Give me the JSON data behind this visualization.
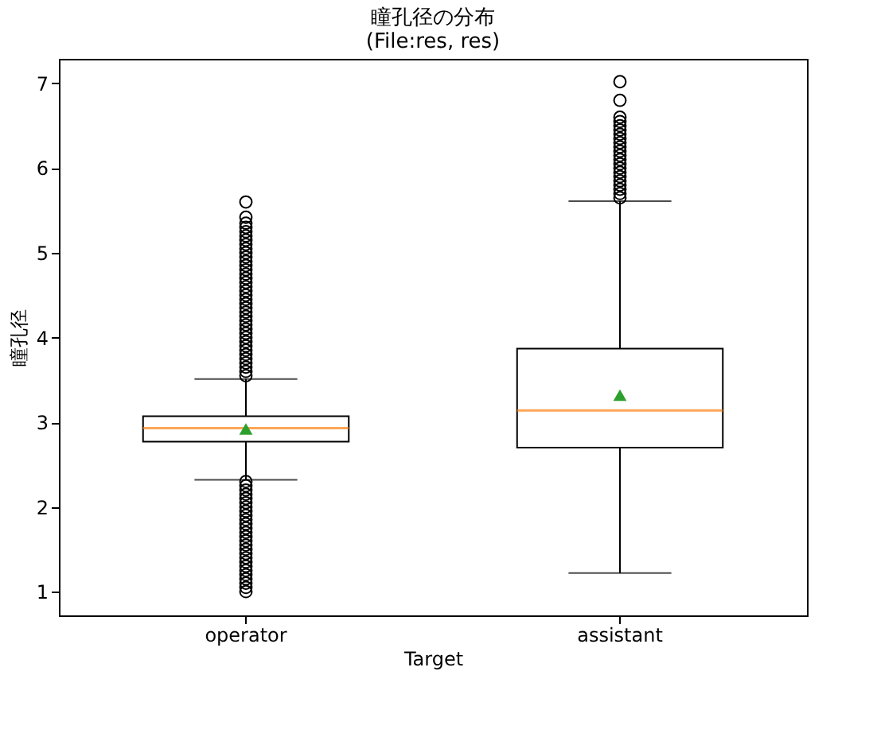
{
  "chart_data": {
    "type": "box",
    "title": "瞳孔径の分布\n(File:res, res)",
    "xlabel": "Target",
    "ylabel": "瞳孔径",
    "categories": [
      "operator",
      "assistant"
    ],
    "boxes": [
      {
        "low": 2.32,
        "q1": 2.77,
        "median": 2.93,
        "q3": 3.07,
        "high": 3.51,
        "mean": 2.92,
        "outliers": [
          1.0,
          1.05,
          1.1,
          1.15,
          1.2,
          1.25,
          1.3,
          1.35,
          1.4,
          1.45,
          1.5,
          1.55,
          1.6,
          1.65,
          1.7,
          1.75,
          1.8,
          1.85,
          1.9,
          1.95,
          2.0,
          2.05,
          2.1,
          2.15,
          2.2,
          2.25,
          2.3,
          3.55,
          3.6,
          3.65,
          3.7,
          3.75,
          3.8,
          3.85,
          3.9,
          3.95,
          4.0,
          4.05,
          4.1,
          4.15,
          4.2,
          4.25,
          4.3,
          4.35,
          4.4,
          4.45,
          4.5,
          4.55,
          4.6,
          4.65,
          4.7,
          4.75,
          4.8,
          4.85,
          4.9,
          4.95,
          5.0,
          5.05,
          5.1,
          5.15,
          5.2,
          5.25,
          5.3,
          5.35,
          5.42,
          5.6
        ]
      },
      {
        "low": 1.22,
        "q1": 2.7,
        "median": 3.14,
        "q3": 3.87,
        "high": 5.61,
        "mean": 3.32,
        "outliers": [
          5.65,
          5.7,
          5.75,
          5.8,
          5.85,
          5.9,
          5.95,
          6.0,
          6.05,
          6.1,
          6.15,
          6.2,
          6.25,
          6.3,
          6.35,
          6.4,
          6.45,
          6.5,
          6.55,
          6.6,
          6.8,
          7.02
        ]
      }
    ],
    "ylim": [
      0.72,
      7.29
    ],
    "yticks": [
      1,
      2,
      3,
      4,
      5,
      6,
      7
    ],
    "grid": false
  }
}
